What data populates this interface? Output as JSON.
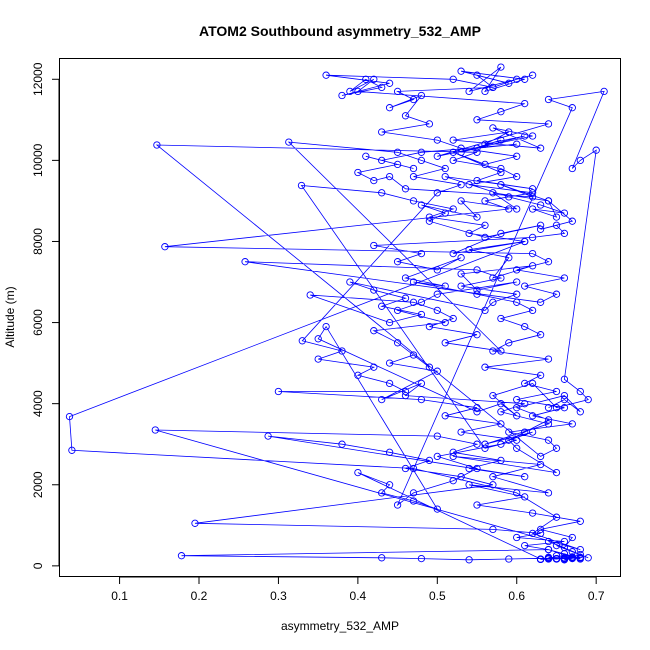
{
  "chart_data": {
    "type": "line",
    "title": "ATOM2 Southbound asymmetry_532_AMP",
    "xlabel": "asymmetry_532_AMP",
    "ylabel": "Altitude (m)",
    "xlim": [
      0.025,
      0.73
    ],
    "ylim": [
      -250,
      12500
    ],
    "x_ticks": [
      0.1,
      0.2,
      0.3,
      0.4,
      0.5,
      0.6,
      0.7
    ],
    "x_tick_labels": [
      "0.1",
      "0.2",
      "0.3",
      "0.4",
      "0.5",
      "0.6",
      "0.7"
    ],
    "y_ticks": [
      0,
      2000,
      4000,
      6000,
      8000,
      10000,
      12000
    ],
    "y_tick_labels": [
      "0",
      "2000",
      "4000",
      "6000",
      "8000",
      "10000",
      "12000"
    ],
    "grid": false,
    "legend": "none",
    "markers": "open-circle",
    "color": "#0000ff",
    "series": [
      {
        "x": [
          0.67,
          0.66,
          0.67,
          0.66,
          0.68,
          0.65,
          0.68,
          0.64,
          0.67,
          0.66,
          0.68,
          0.67,
          0.65,
          0.69,
          0.64,
          0.66,
          0.67,
          0.63,
          0.68,
          0.62,
          0.55,
          0.61,
          0.54,
          0.64,
          0.57,
          0.63,
          0.52,
          0.65,
          0.6,
          0.59,
          0.62,
          0.56,
          0.64,
          0.58,
          0.61,
          0.46,
          0.48,
          0.43,
          0.5,
          0.44,
          0.47,
          0.49,
          0.45,
          0.42,
          0.51,
          0.45,
          0.48,
          0.5,
          0.6,
          0.55,
          0.53,
          0.62,
          0.57,
          0.59,
          0.54,
          0.61,
          0.52,
          0.58,
          0.63,
          0.56,
          0.49,
          0.51,
          0.48,
          0.55,
          0.53,
          0.6,
          0.57,
          0.64,
          0.58,
          0.62,
          0.46,
          0.44,
          0.42,
          0.4,
          0.45,
          0.47,
          0.41,
          0.43,
          0.48,
          0.6,
          0.55,
          0.58,
          0.53,
          0.61,
          0.56,
          0.59,
          0.52,
          0.63,
          0.57,
          0.62,
          0.5,
          0.64,
          0.55,
          0.58,
          0.61,
          0.4,
          0.42,
          0.39,
          0.41,
          0.43,
          0.38,
          0.44,
          0.36,
          0.52,
          0.57,
          0.55,
          0.59,
          0.53,
          0.61,
          0.56,
          0.58,
          0.54,
          0.62,
          0.6,
          0.57,
          0.45,
          0.47,
          0.44,
          0.48,
          0.46,
          0.49,
          0.43,
          0.5,
          0.53,
          0.6,
          0.56,
          0.52,
          0.58,
          0.55,
          0.62,
          0.51,
          0.59,
          0.63,
          0.66,
          0.62,
          0.65,
          0.64,
          0.67,
          0.63,
          0.65,
          0.66,
          0.62,
          0.42,
          0.48,
          0.45,
          0.5,
          0.53,
          0.46,
          0.51,
          0.47,
          0.55,
          0.6,
          0.62,
          0.58,
          0.61,
          0.63,
          0.59,
          0.57,
          0.64,
          0.56,
          0.63,
          0.61,
          0.65,
          0.6,
          0.66,
          0.62,
          0.67,
          0.59,
          0.64,
          0.65,
          0.63,
          0.147,
          0.55,
          0.52,
          0.58,
          0.6,
          0.54,
          0.62,
          0.56,
          0.59,
          0.157,
          0.62,
          0.64,
          0.6,
          0.66,
          0.61,
          0.65,
          0.63,
          0.258,
          0.55,
          0.58,
          0.53,
          0.6,
          0.57,
          0.56,
          0.39,
          0.42,
          0.46,
          0.43,
          0.48,
          0.44,
          0.34,
          0.47,
          0.5,
          0.52,
          0.49,
          0.55,
          0.51,
          0.58,
          0.313,
          0.45,
          0.48,
          0.51,
          0.47,
          0.53,
          0.5,
          0.33,
          0.38,
          0.35,
          0.42,
          0.4,
          0.44,
          0.46,
          0.3,
          0.48,
          0.55,
          0.51,
          0.58,
          0.53,
          0.6,
          0.56,
          0.329,
          0.43,
          0.47,
          0.52,
          0.49,
          0.56,
          0.54,
          0.61,
          0.037,
          0.04,
          0.47,
          0.6,
          0.65,
          0.62,
          0.68,
          0.145,
          0.5,
          0.55,
          0.52,
          0.58,
          0.54,
          0.61,
          0.287,
          0.38,
          0.44,
          0.49,
          0.46,
          0.53,
          0.57,
          0.195,
          0.57,
          0.63,
          0.6,
          0.66,
          0.61,
          0.64,
          0.178,
          0.43,
          0.48,
          0.54,
          0.59,
          0.64,
          0.67,
          0.64,
          0.66,
          0.65,
          0.63,
          0.67,
          0.64,
          0.66,
          0.68,
          0.65,
          0.64,
          0.66,
          0.63,
          0.67,
          0.65,
          0.64,
          0.66,
          0.68,
          0.65,
          0.67,
          0.63,
          0.4,
          0.44,
          0.43,
          0.47,
          0.5,
          0.36,
          0.35,
          0.55,
          0.58,
          0.6,
          0.57,
          0.62,
          0.65,
          0.69,
          0.68,
          0.66,
          0.7,
          0.68,
          0.67,
          0.71,
          0.64,
          0.67,
          0.45,
          0.47,
          0.52,
          0.55,
          0.5,
          0.58,
          0.61,
          0.64,
          0.6,
          0.66,
          0.68,
          0.66,
          0.64
        ],
        "y": [
          180,
          150,
          220,
          300,
          170,
          250,
          190,
          400,
          210,
          160,
          280,
          350,
          500,
          200,
          600,
          450,
          700,
          900,
          1100,
          1300,
          1500,
          1700,
          2000,
          1800,
          2200,
          2500,
          2700,
          2300,
          2900,
          3100,
          3300,
          3000,
          3500,
          3800,
          4000,
          4200,
          4500,
          4100,
          4800,
          5000,
          5200,
          4900,
          5500,
          5800,
          6000,
          6300,
          6500,
          6700,
          7000,
          6800,
          7200,
          7400,
          7100,
          7600,
          7800,
          8000,
          7700,
          8200,
          8400,
          8100,
          8500,
          8700,
          8900,
          8600,
          9000,
          8800,
          9200,
          9000,
          9400,
          9100,
          9300,
          9600,
          9500,
          9700,
          9900,
          9800,
          10100,
          10000,
          10200,
          10400,
          10300,
          10500,
          10200,
          10600,
          10400,
          10700,
          10500,
          10300,
          10800,
          10600,
          10100,
          10900,
          11000,
          11200,
          11400,
          11700,
          12000,
          11700,
          12000,
          11800,
          11600,
          11900,
          12100,
          12000,
          11800,
          12100,
          11900,
          12200,
          12000,
          11700,
          12300,
          11700,
          12100,
          12000,
          11800,
          11700,
          11500,
          11300,
          11600,
          11100,
          10900,
          10700,
          10500,
          10300,
          10100,
          9900,
          10200,
          9700,
          9500,
          9300,
          9600,
          9100,
          8900,
          8700,
          8800,
          8600,
          9000,
          8500,
          8300,
          8400,
          8200,
          8100,
          7900,
          7700,
          7500,
          7300,
          7600,
          7100,
          6900,
          7000,
          6700,
          6500,
          6300,
          6100,
          5900,
          5700,
          5500,
          5300,
          5100,
          4900,
          4700,
          4500,
          4300,
          4100,
          3900,
          3700,
          3500,
          3300,
          3100,
          2900,
          2700,
          10380,
          10200,
          10000,
          9800,
          9600,
          9400,
          9200,
          9000,
          8800,
          7870,
          7700,
          7500,
          7300,
          7100,
          6900,
          6700,
          6500,
          7500,
          7300,
          7100,
          6900,
          6700,
          6500,
          6300,
          7000,
          6800,
          6600,
          6400,
          6200,
          6000,
          6680,
          6500,
          6300,
          6100,
          5900,
          5700,
          5500,
          5300,
          10450,
          10200,
          10000,
          9800,
          9600,
          9400,
          9200,
          5550,
          5300,
          5100,
          4900,
          4700,
          4500,
          4300,
          4300,
          4100,
          3900,
          3700,
          3500,
          3300,
          3100,
          2900,
          9380,
          9200,
          9000,
          8800,
          8600,
          8400,
          8200,
          8000,
          3680,
          2850,
          2400,
          1800,
          1200,
          800,
          400,
          3350,
          3200,
          3000,
          2800,
          2600,
          2400,
          2200,
          3200,
          3000,
          2800,
          2600,
          2400,
          2200,
          2000,
          1050,
          900,
          800,
          700,
          600,
          500,
          400,
          250,
          200,
          180,
          150,
          170,
          190,
          200,
          180,
          200,
          170,
          160,
          190,
          210,
          180,
          200,
          170,
          190,
          180,
          160,
          200,
          180,
          170,
          190,
          210,
          180,
          200,
          170,
          2300,
          2000,
          1800,
          1600,
          1400,
          5900,
          5600,
          3800,
          4000,
          3700,
          4200,
          4500,
          3900,
          4100,
          4300,
          4600,
          10250,
          10000,
          9800,
          11700,
          11500,
          11300,
          1500,
          1800,
          2100,
          2400,
          2700,
          3000,
          3300,
          3600,
          3900,
          4200,
          3800,
          4100,
          3900
        ]
      }
    ]
  }
}
